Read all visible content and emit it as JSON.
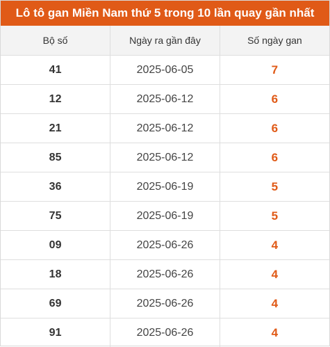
{
  "title": "Lô tô gan Miền Nam thứ 5 trong 10 lần quay gần nhất",
  "colors": {
    "accent": "#e05a17",
    "header_bg": "#f3f3f3"
  },
  "table": {
    "headers": [
      "Bộ số",
      "Ngày ra gần đây",
      "Số ngày gan"
    ],
    "rows": [
      {
        "number": "41",
        "date": "2025-06-05",
        "days": "7"
      },
      {
        "number": "12",
        "date": "2025-06-12",
        "days": "6"
      },
      {
        "number": "21",
        "date": "2025-06-12",
        "days": "6"
      },
      {
        "number": "85",
        "date": "2025-06-12",
        "days": "6"
      },
      {
        "number": "36",
        "date": "2025-06-19",
        "days": "5"
      },
      {
        "number": "75",
        "date": "2025-06-19",
        "days": "5"
      },
      {
        "number": "09",
        "date": "2025-06-26",
        "days": "4"
      },
      {
        "number": "18",
        "date": "2025-06-26",
        "days": "4"
      },
      {
        "number": "69",
        "date": "2025-06-26",
        "days": "4"
      },
      {
        "number": "91",
        "date": "2025-06-26",
        "days": "4"
      }
    ]
  }
}
